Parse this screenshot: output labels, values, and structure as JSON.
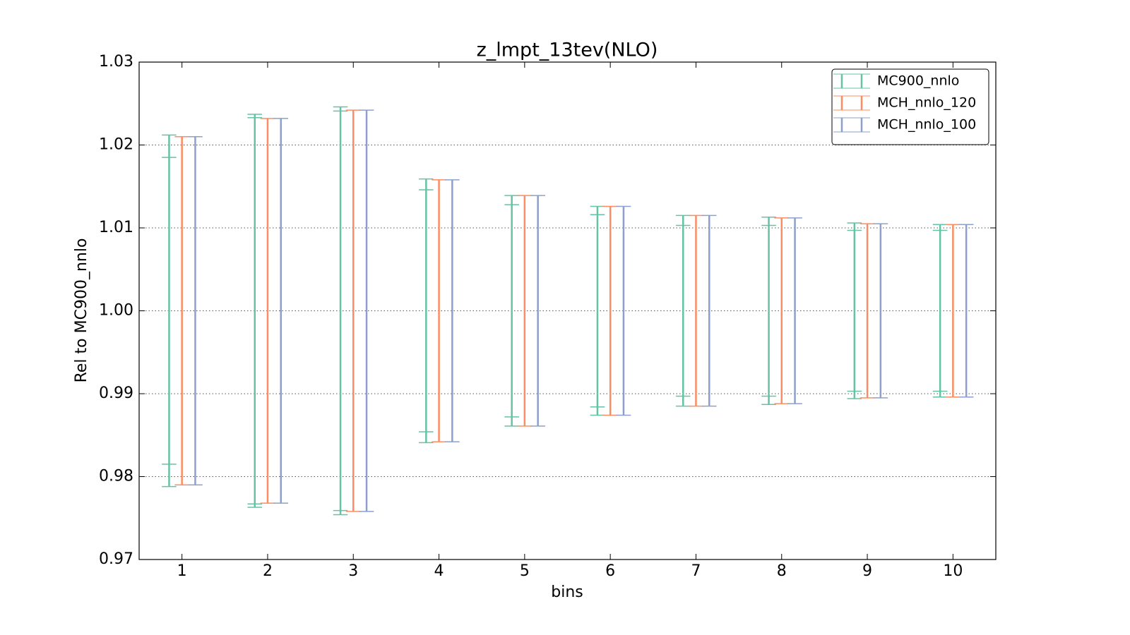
{
  "chart_data": {
    "type": "errorbar",
    "title": "z_lmpt_13tev(NLO)",
    "xlabel": "bins",
    "ylabel": "Rel to MC900_nnlo",
    "x": [
      1,
      2,
      3,
      4,
      5,
      6,
      7,
      8,
      9,
      10
    ],
    "xlim": [
      0.5,
      10.5
    ],
    "xticks": [
      1,
      2,
      3,
      4,
      5,
      6,
      7,
      8,
      9,
      10
    ],
    "ylim": [
      0.97,
      1.03
    ],
    "yticks": [
      0.97,
      0.98,
      0.99,
      {
        "value": 1,
        "label": "1.00"
      },
      1.01,
      1.02,
      1.03
    ],
    "grid": "y",
    "legend": "upper right",
    "series": [
      {
        "name": "MC900_nnlo",
        "color": "#66c2a5",
        "values": [
          1,
          1,
          1,
          1,
          1,
          1,
          1,
          1,
          1,
          1
        ],
        "errors": [
          0.0212,
          0.0237,
          0.0246,
          0.0159,
          0.0139,
          0.0126,
          0.0115,
          0.0113,
          0.0106,
          0.0104
        ],
        "errors_inner": [
          0.0185,
          0.0233,
          0.0241,
          0.0146,
          0.0128,
          0.0116,
          0.0103,
          0.0103,
          0.0097,
          0.0097
        ]
      },
      {
        "name": "MCH_nnlo_120",
        "color": "#fc8d62",
        "values": [
          1,
          1,
          1,
          1,
          1,
          1,
          1,
          1,
          1,
          1
        ],
        "errors": [
          0.021,
          0.0232,
          0.0242,
          0.0158,
          0.0139,
          0.0126,
          0.0115,
          0.0112,
          0.0105,
          0.0104
        ]
      },
      {
        "name": "MCH_nnlo_100",
        "color": "#8da0cb",
        "values": [
          1,
          1,
          1,
          1,
          1,
          1,
          1,
          1,
          1,
          1
        ],
        "errors": [
          0.021,
          0.0232,
          0.0242,
          0.0158,
          0.0139,
          0.0126,
          0.0115,
          0.0112,
          0.0105,
          0.0104
        ]
      }
    ]
  }
}
